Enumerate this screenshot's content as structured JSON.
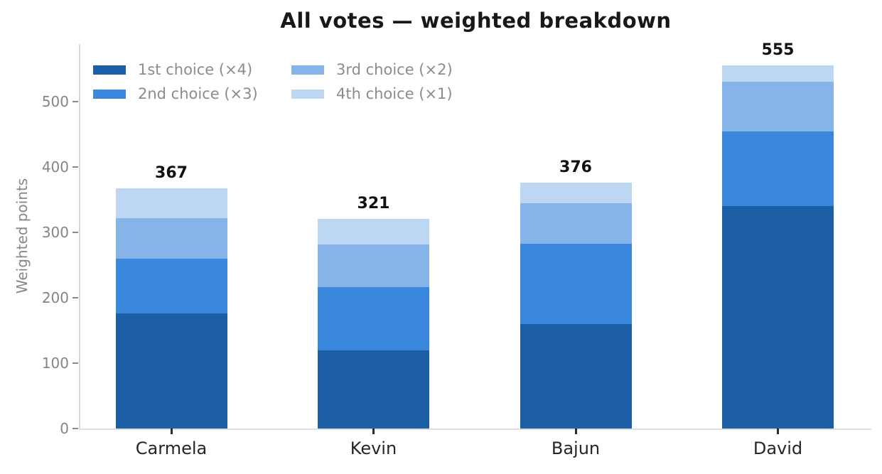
{
  "title": "All votes — weighted breakdown",
  "y_axis": {
    "label": "Weighted points",
    "ticks": [
      "0",
      "100",
      "200",
      "300",
      "400",
      "500"
    ]
  },
  "legend": {
    "columns": 2,
    "items": [
      {
        "label": "1st choice (×4)",
        "color": "#1d5fa6"
      },
      {
        "label": "2nd choice (×3)",
        "color": "#3a87de"
      },
      {
        "label": "3rd choice (×2)",
        "color": "#86b3e8"
      },
      {
        "label": "4th choice (×1)",
        "color": "#bdd7f2"
      }
    ]
  },
  "chart_data": {
    "type": "bar",
    "stacked": true,
    "title": "All votes — weighted breakdown",
    "xlabel": "",
    "ylabel": "Weighted points",
    "categories": [
      "Carmela",
      "Kevin",
      "Bajun",
      "David"
    ],
    "series": [
      {
        "name": "1st choice (×4)",
        "color": "#1d5fa6",
        "values": [
          176,
          120,
          160,
          340
        ]
      },
      {
        "name": "2nd choice (×3)",
        "color": "#3a87de",
        "values": [
          84,
          96,
          123,
          114
        ]
      },
      {
        "name": "3rd choice (×2)",
        "color": "#86b3e8",
        "values": [
          62,
          66,
          62,
          76
        ]
      },
      {
        "name": "4th choice (×1)",
        "color": "#bdd7f2",
        "values": [
          45,
          39,
          31,
          25
        ]
      }
    ],
    "totals": [
      367,
      321,
      376,
      555
    ],
    "ylim": [
      0,
      588
    ],
    "yticks": [
      0,
      100,
      200,
      300,
      400,
      500
    ],
    "grid": false,
    "legend_position": "upper left, 2 columns"
  }
}
